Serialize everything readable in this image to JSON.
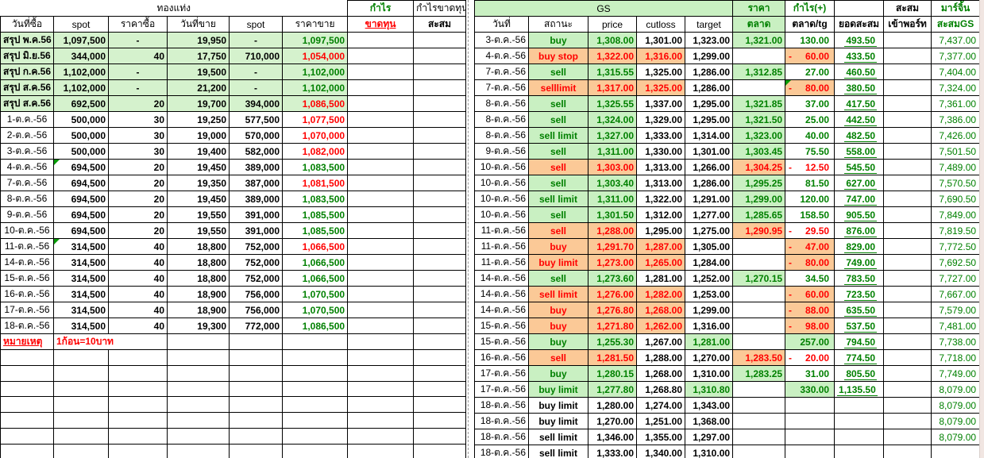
{
  "colors": {
    "green_text": "#008000",
    "red_text": "#ff0000",
    "green_bg": "#c9f0c2",
    "orange_bg": "#fbc997",
    "summary_bg": "#d5f2cd"
  },
  "left_table": {
    "title": "ทองแท่ง",
    "columns": [
      "วันที่ซื้อ",
      "spot",
      "ราคาซื้อ",
      "วันที่ขาย",
      "spot",
      "ราคาขาย"
    ],
    "profit_col": {
      "top": "กำไร",
      "bottom": "ขาดทุน"
    },
    "cum_col": {
      "top": "กำไรขาดทุน",
      "bottom": "สะสม"
    },
    "note": {
      "label": "หมายเหตุ",
      "text": "1ก้อน=10บาท"
    },
    "rows": [
      {
        "d": "สรุป พ.ค.56",
        "s": "1,097,500",
        "q": "-",
        "wd": "19,950",
        "s2": "-",
        "pr": "1,097,500",
        "pc": "g",
        "sum": true
      },
      {
        "d": "สรุป มิ.ย.56",
        "s": "344,000",
        "q": "40",
        "wd": "17,750",
        "s2": "710,000",
        "pr": "1,054,000",
        "pc": "r",
        "sum": true
      },
      {
        "d": "สรุป ก.ค.56",
        "s": "1,102,000",
        "q": "-",
        "wd": "19,500",
        "s2": "-",
        "pr": "1,102,000",
        "pc": "g",
        "sum": true
      },
      {
        "d": "สรุป ส.ค.56",
        "s": "1,102,000",
        "q": "-",
        "wd": "21,200",
        "s2": "-",
        "pr": "1,102,000",
        "pc": "g",
        "sum": true
      },
      {
        "d": "สรุป ส.ค.56",
        "s": "692,500",
        "q": "20",
        "wd": "19,700",
        "s2": "394,000",
        "pr": "1,086,500",
        "pc": "r",
        "sum": true
      },
      {
        "d": "1-ต.ค.-56",
        "s": "500,000",
        "q": "30",
        "wd": "19,250",
        "s2": "577,500",
        "pr": "1,077,500",
        "pc": "r"
      },
      {
        "d": "2-ต.ค.-56",
        "s": "500,000",
        "q": "30",
        "wd": "19,000",
        "s2": "570,000",
        "pr": "1,070,000",
        "pc": "r"
      },
      {
        "d": "3-ต.ค.-56",
        "s": "500,000",
        "q": "30",
        "wd": "19,400",
        "s2": "582,000",
        "pr": "1,082,000",
        "pc": "r"
      },
      {
        "d": "4-ต.ค.-56",
        "s": "694,500",
        "q": "20",
        "wd": "19,450",
        "s2": "389,000",
        "pr": "1,083,500",
        "pc": "g",
        "note": true
      },
      {
        "d": "7-ต.ค.-56",
        "s": "694,500",
        "q": "20",
        "wd": "19,350",
        "s2": "387,000",
        "pr": "1,081,500",
        "pc": "r"
      },
      {
        "d": "8-ต.ค.-56",
        "s": "694,500",
        "q": "20",
        "wd": "19,450",
        "s2": "389,000",
        "pr": "1,083,500",
        "pc": "g"
      },
      {
        "d": "9-ต.ค.-56",
        "s": "694,500",
        "q": "20",
        "wd": "19,550",
        "s2": "391,000",
        "pr": "1,085,500",
        "pc": "g"
      },
      {
        "d": "10-ต.ค.-56",
        "s": "694,500",
        "q": "20",
        "wd": "19,550",
        "s2": "391,000",
        "pr": "1,085,500",
        "pc": "g"
      },
      {
        "d": "11-ต.ค.-56",
        "s": "314,500",
        "q": "40",
        "wd": "18,800",
        "s2": "752,000",
        "pr": "1,066,500",
        "pc": "r",
        "note": true
      },
      {
        "d": "14-ต.ค.-56",
        "s": "314,500",
        "q": "40",
        "wd": "18,800",
        "s2": "752,000",
        "pr": "1,066,500",
        "pc": "g"
      },
      {
        "d": "15-ต.ค.-56",
        "s": "314,500",
        "q": "40",
        "wd": "18,800",
        "s2": "752,000",
        "pr": "1,066,500",
        "pc": "g"
      },
      {
        "d": "16-ต.ค.-56",
        "s": "314,500",
        "q": "40",
        "wd": "18,900",
        "s2": "756,000",
        "pr": "1,070,500",
        "pc": "g"
      },
      {
        "d": "17-ต.ค.-56",
        "s": "314,500",
        "q": "40",
        "wd": "18,900",
        "s2": "756,000",
        "pr": "1,070,500",
        "pc": "g"
      },
      {
        "d": "18-ต.ค.-56",
        "s": "314,500",
        "q": "40",
        "wd": "19,300",
        "s2": "772,000",
        "pr": "1,086,500",
        "pc": "g"
      }
    ],
    "empty_rows": 8
  },
  "gs_table": {
    "title": "GS",
    "columns": [
      "วันที่",
      "สถานะ",
      "price",
      "cutloss",
      "target"
    ],
    "market_col": {
      "top": "ราคา",
      "bottom": "ตลาด"
    },
    "profit_col": {
      "top": "กำไร(+)",
      "bottom": "ตลาด/tg"
    },
    "cum_col": {
      "top": "",
      "bottom": "ยอดสะสม"
    },
    "port_col": {
      "top": "สะสม",
      "bottom": "เข้าพอร์ท"
    },
    "margin_col": {
      "top": "มาร์จิ้น",
      "bottom": "สะสมGS"
    },
    "rows": [
      {
        "d": "3-ต.ค.-56",
        "st": [
          "buy",
          "g"
        ],
        "p": [
          "1,308.00",
          "g"
        ],
        "c": [
          "1,301.00",
          "k"
        ],
        "t": [
          "1,323.00",
          "k"
        ],
        "m": [
          "1,321.00",
          "g"
        ],
        "pf": [
          "130.00",
          "pos"
        ],
        "cum": "493.50",
        "mg": "7,437.00"
      },
      {
        "d": "4-ต.ค.-56",
        "st": [
          "buy stop",
          "o"
        ],
        "p": [
          "1,322.00",
          "o"
        ],
        "c": [
          "1,316.00",
          "o"
        ],
        "t": [
          "1,299.00",
          "k"
        ],
        "m": null,
        "pf": [
          "60.00",
          "nego"
        ],
        "cum": "433.50",
        "mg": "7,377.00"
      },
      {
        "d": "7-ต.ค.-56",
        "st": [
          "sell",
          "g"
        ],
        "p": [
          "1,315.55",
          "g"
        ],
        "c": [
          "1,325.00",
          "k"
        ],
        "t": [
          "1,286.00",
          "k"
        ],
        "m": [
          "1,312.85",
          "g"
        ],
        "pf": [
          "27.00",
          "pos"
        ],
        "cum": "460.50",
        "mg": "7,404.00"
      },
      {
        "d": "7-ต.ค.-56",
        "st": [
          "selllimit",
          "o"
        ],
        "p": [
          "1,317.00",
          "o"
        ],
        "c": [
          "1,325.00",
          "o"
        ],
        "t": [
          "1,286.00",
          "k"
        ],
        "m": null,
        "pf": [
          "80.00",
          "nego"
        ],
        "pn": true,
        "cum": "380.50",
        "mg": "7,324.00"
      },
      {
        "d": "8-ต.ค.-56",
        "st": [
          "sell",
          "g"
        ],
        "p": [
          "1,325.55",
          "g"
        ],
        "c": [
          "1,337.00",
          "k"
        ],
        "t": [
          "1,295.00",
          "k"
        ],
        "m": [
          "1,321.85",
          "g"
        ],
        "pf": [
          "37.00",
          "pos"
        ],
        "cum": "417.50",
        "mg": "7,361.00"
      },
      {
        "d": "8-ต.ค.-56",
        "st": [
          "sell",
          "g"
        ],
        "p": [
          "1,324.00",
          "g"
        ],
        "c": [
          "1,329.00",
          "k"
        ],
        "t": [
          "1,295.00",
          "k"
        ],
        "m": [
          "1,321.50",
          "g"
        ],
        "pf": [
          "25.00",
          "pos"
        ],
        "cum": "442.50",
        "mg": "7,386.00"
      },
      {
        "d": "8-ต.ค.-56",
        "st": [
          "sell limit",
          "g"
        ],
        "p": [
          "1,327.00",
          "g"
        ],
        "c": [
          "1,333.00",
          "k"
        ],
        "t": [
          "1,314.00",
          "k"
        ],
        "m": [
          "1,323.00",
          "g"
        ],
        "pf": [
          "40.00",
          "pos"
        ],
        "cum": "482.50",
        "mg": "7,426.00"
      },
      {
        "d": "9-ต.ค.-56",
        "st": [
          "sell",
          "g"
        ],
        "p": [
          "1,311.00",
          "g"
        ],
        "c": [
          "1,330.00",
          "k"
        ],
        "t": [
          "1,301.00",
          "k"
        ],
        "m": [
          "1,303.45",
          "g"
        ],
        "pf": [
          "75.50",
          "pos"
        ],
        "cum": "558.00",
        "mg": "7,501.50"
      },
      {
        "d": "10-ต.ค.-56",
        "st": [
          "sell",
          "o"
        ],
        "p": [
          "1,303.00",
          "o"
        ],
        "c": [
          "1,313.00",
          "k"
        ],
        "t": [
          "1,266.00",
          "k"
        ],
        "m": [
          "1,304.25",
          "o"
        ],
        "pf": [
          "12.50",
          "negw"
        ],
        "cum": "545.50",
        "mg": "7,489.00"
      },
      {
        "d": "10-ต.ค.-56",
        "st": [
          "sell",
          "g"
        ],
        "p": [
          "1,303.40",
          "g"
        ],
        "c": [
          "1,313.00",
          "k"
        ],
        "t": [
          "1,286.00",
          "k"
        ],
        "m": [
          "1,295.25",
          "g"
        ],
        "pf": [
          "81.50",
          "pos"
        ],
        "cum": "627.00",
        "mg": "7,570.50"
      },
      {
        "d": "10-ต.ค.-56",
        "st": [
          "sell limit",
          "g"
        ],
        "p": [
          "1,311.00",
          "g"
        ],
        "c": [
          "1,322.00",
          "k"
        ],
        "t": [
          "1,291.00",
          "k"
        ],
        "m": [
          "1,299.00",
          "g"
        ],
        "pf": [
          "120.00",
          "pos"
        ],
        "cum": "747.00",
        "mg": "7,690.50"
      },
      {
        "d": "10-ต.ค.-56",
        "st": [
          "sell",
          "g"
        ],
        "p": [
          "1,301.50",
          "g"
        ],
        "c": [
          "1,312.00",
          "k"
        ],
        "t": [
          "1,277.00",
          "k"
        ],
        "m": [
          "1,285.65",
          "g"
        ],
        "pf": [
          "158.50",
          "pos"
        ],
        "cum": "905.50",
        "mg": "7,849.00"
      },
      {
        "d": "11-ต.ค.-56",
        "st": [
          "sell",
          "o"
        ],
        "p": [
          "1,288.00",
          "o"
        ],
        "c": [
          "1,295.00",
          "k"
        ],
        "t": [
          "1,275.00",
          "k"
        ],
        "m": [
          "1,290.95",
          "o"
        ],
        "pf": [
          "29.50",
          "negw"
        ],
        "cum": "876.00",
        "mg": "7,819.50"
      },
      {
        "d": "11-ต.ค.-56",
        "st": [
          "buy",
          "o"
        ],
        "p": [
          "1,291.70",
          "o"
        ],
        "c": [
          "1,287.00",
          "o"
        ],
        "t": [
          "1,305.00",
          "k"
        ],
        "m": null,
        "pf": [
          "47.00",
          "nego"
        ],
        "cum": "829.00",
        "mg": "7,772.50"
      },
      {
        "d": "11-ต.ค.-56",
        "st": [
          "buy limit",
          "o"
        ],
        "p": [
          "1,273.00",
          "o"
        ],
        "c": [
          "1,265.00",
          "o"
        ],
        "t": [
          "1,284.00",
          "k"
        ],
        "m": null,
        "pf": [
          "80.00",
          "nego"
        ],
        "cum": "749.00",
        "mg": "7,692.50"
      },
      {
        "d": "14-ต.ค.-56",
        "st": [
          "sell",
          "g"
        ],
        "p": [
          "1,273.60",
          "g"
        ],
        "c": [
          "1,281.00",
          "k"
        ],
        "t": [
          "1,252.00",
          "k"
        ],
        "m": [
          "1,270.15",
          "g"
        ],
        "pf": [
          "34.50",
          "pos"
        ],
        "cum": "783.50",
        "mg": "7,727.00"
      },
      {
        "d": "14-ต.ค.-56",
        "st": [
          "sell limit",
          "o"
        ],
        "p": [
          "1,276.00",
          "o"
        ],
        "c": [
          "1,282.00",
          "o"
        ],
        "t": [
          "1,253.00",
          "k"
        ],
        "m": null,
        "pf": [
          "60.00",
          "nego"
        ],
        "cum": "723.50",
        "mg": "7,667.00"
      },
      {
        "d": "14-ต.ค.-56",
        "st": [
          "buy",
          "o"
        ],
        "p": [
          "1,276.80",
          "o"
        ],
        "c": [
          "1,268.00",
          "o"
        ],
        "t": [
          "1,299.00",
          "k"
        ],
        "m": null,
        "pf": [
          "88.00",
          "nego"
        ],
        "cum": "635.50",
        "mg": "7,579.00"
      },
      {
        "d": "15-ต.ค.-56",
        "st": [
          "buy",
          "o"
        ],
        "p": [
          "1,271.80",
          "o"
        ],
        "c": [
          "1,262.00",
          "o"
        ],
        "t": [
          "1,316.00",
          "k"
        ],
        "m": null,
        "pf": [
          "98.00",
          "nego"
        ],
        "cum": "537.50",
        "mg": "7,481.00"
      },
      {
        "d": "15-ต.ค.-56",
        "st": [
          "buy",
          "g"
        ],
        "p": [
          "1,255.30",
          "g"
        ],
        "c": [
          "1,267.00",
          "k"
        ],
        "t": [
          "1,281.00",
          "g"
        ],
        "m": null,
        "pf": [
          "257.00",
          "posg"
        ],
        "cum": "794.50",
        "mg": "7,738.00"
      },
      {
        "d": "16-ต.ค.-56",
        "st": [
          "sell",
          "o"
        ],
        "p": [
          "1,281.50",
          "o"
        ],
        "c": [
          "1,288.00",
          "k"
        ],
        "t": [
          "1,270.00",
          "k"
        ],
        "m": [
          "1,283.50",
          "o"
        ],
        "pf": [
          "20.00",
          "negw"
        ],
        "cum": "774.50",
        "mg": "7,718.00"
      },
      {
        "d": "17-ต.ค.-56",
        "st": [
          "buy",
          "g"
        ],
        "p": [
          "1,280.15",
          "g"
        ],
        "c": [
          "1,268.00",
          "k"
        ],
        "t": [
          "1,310.00",
          "k"
        ],
        "m": [
          "1,283.25",
          "g"
        ],
        "pf": [
          "31.00",
          "pos"
        ],
        "cum": "805.50",
        "mg": "7,749.00"
      },
      {
        "d": "17-ต.ค.-56",
        "st": [
          "buy limit",
          "g"
        ],
        "p": [
          "1,277.80",
          "g"
        ],
        "c": [
          "1,268.80",
          "k"
        ],
        "t": [
          "1,310.80",
          "g"
        ],
        "m": null,
        "pf": [
          "330.00",
          "posg"
        ],
        "cum": "1,135.50",
        "mg": "8,079.00"
      },
      {
        "d": "18-ต.ค.-56",
        "st": [
          "buy limit",
          "k"
        ],
        "p": [
          "1,280.00",
          "k"
        ],
        "c": [
          "1,274.00",
          "k"
        ],
        "t": [
          "1,343.00",
          "k"
        ],
        "m": null,
        "pf": null,
        "cum": "",
        "mg": "8,079.00"
      },
      {
        "d": "18-ต.ค.-56",
        "st": [
          "buy limit",
          "k"
        ],
        "p": [
          "1,270.00",
          "k"
        ],
        "c": [
          "1,251.00",
          "k"
        ],
        "t": [
          "1,368.00",
          "k"
        ],
        "m": null,
        "pf": null,
        "cum": "",
        "mg": "8,079.00"
      },
      {
        "d": "18-ต.ค.-56",
        "st": [
          "sell limit",
          "k"
        ],
        "p": [
          "1,346.00",
          "k"
        ],
        "c": [
          "1,355.00",
          "k"
        ],
        "t": [
          "1,297.00",
          "k"
        ],
        "m": null,
        "pf": null,
        "cum": "",
        "mg": "8,079.00"
      },
      {
        "d": "18-ต.ค.-56",
        "st": [
          "sell limit",
          "k"
        ],
        "p": [
          "1,333.00",
          "k"
        ],
        "c": [
          "1,340.00",
          "k"
        ],
        "t": [
          "1,310.00",
          "k"
        ],
        "m": null,
        "pf": null,
        "cum": "",
        "mg": ""
      }
    ],
    "empty_rows": 1
  }
}
